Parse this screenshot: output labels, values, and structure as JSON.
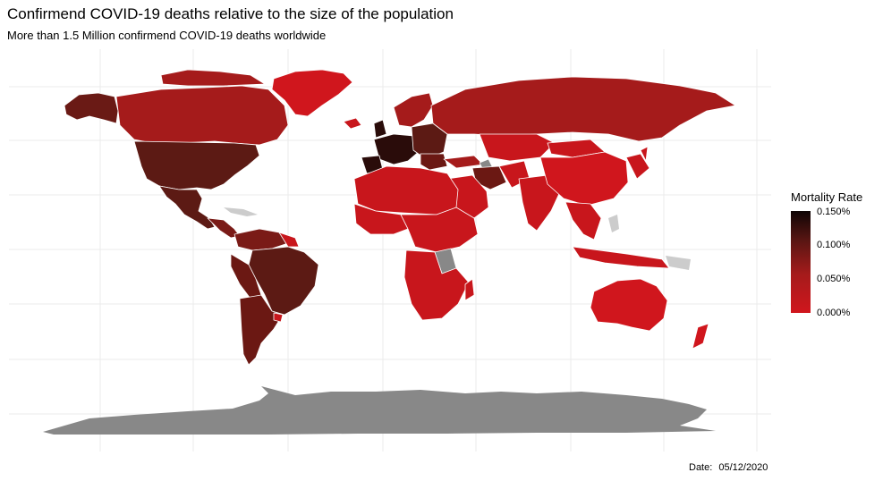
{
  "title": "Confirmend COVID-19 deaths relative to the size of the population",
  "subtitle": "More than 1.5 Million confirmend COVID-19 deaths worldwide",
  "caption": {
    "label": "Date:",
    "value": "05/12/2020"
  },
  "legend": {
    "title": "Mortality Rate",
    "labels": [
      "0.150%",
      "0.100%",
      "0.050%",
      "0.000%"
    ]
  },
  "colors": {
    "no_data": "#888888",
    "minor_no_data": "#cccccc",
    "scale_low": "#d0161d",
    "scale_mid": "#a51b1b",
    "scale_high": "#5c1613",
    "scale_max": "#0f0505",
    "border": "#ffffff",
    "grid": "#ebebeb"
  }
}
